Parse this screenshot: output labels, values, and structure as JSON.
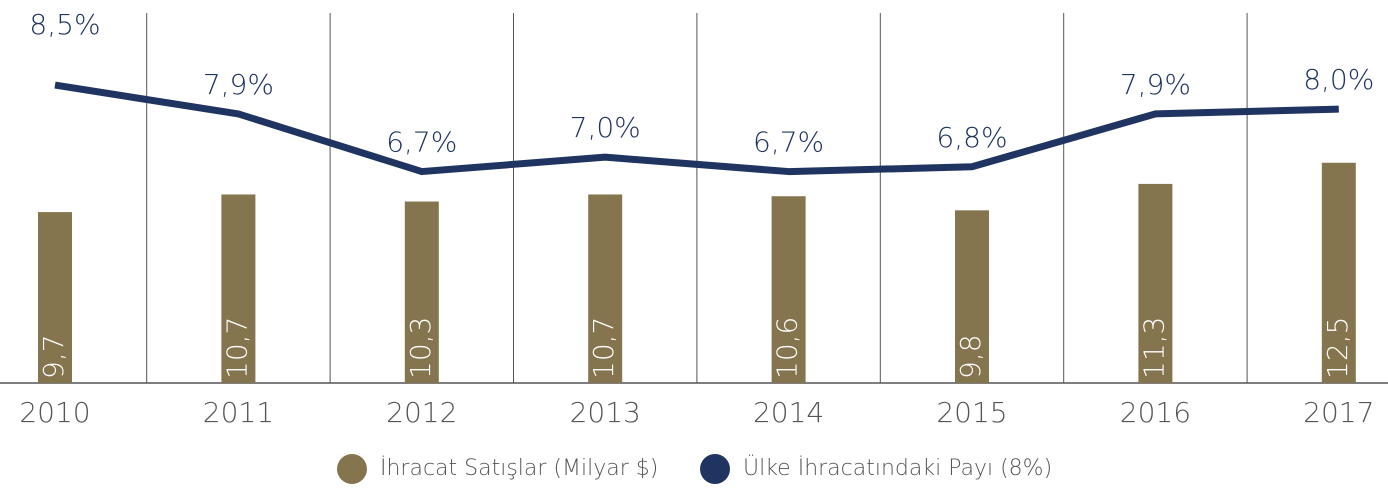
{
  "chart_data": {
    "type": "bar-line",
    "categories": [
      "2010",
      "2011",
      "2012",
      "2013",
      "2014",
      "2015",
      "2016",
      "2017"
    ],
    "series": [
      {
        "name": "İhracat Satışlar (Milyar $)",
        "type": "bar",
        "color": "#85754e",
        "values": [
          9.7,
          10.7,
          10.3,
          10.7,
          10.6,
          9.8,
          11.3,
          12.5
        ],
        "value_labels": [
          "9,7",
          "10,7",
          "10,3",
          "10,7",
          "10,6",
          "9,8",
          "11,3",
          "12,5"
        ]
      },
      {
        "name": "Ülke İhracatındaki Payı (8%)",
        "type": "line",
        "axis": "y2",
        "color": "#1f3461",
        "values": [
          8.5,
          7.9,
          6.7,
          7.0,
          6.7,
          6.8,
          7.9,
          8.0
        ],
        "value_labels": [
          "8,5%",
          "7,9%",
          "6,7%",
          "7,0%",
          "6,7%",
          "6,8%",
          "7,9%",
          "8,0%"
        ]
      }
    ],
    "ylim": [
      0,
      21
    ],
    "y2lim": [
      2.3,
      10
    ],
    "grid": true,
    "legend": "bottom"
  }
}
